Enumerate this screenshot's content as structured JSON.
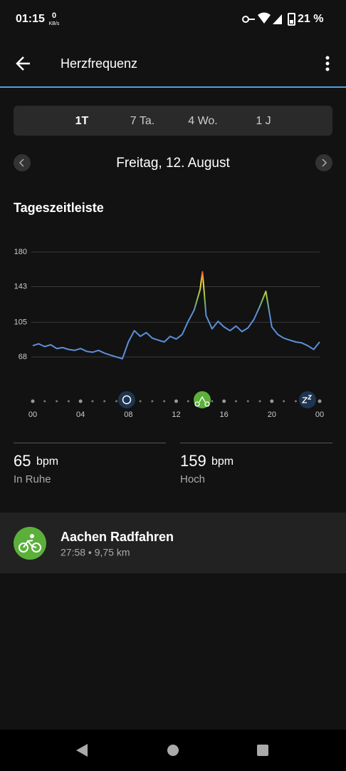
{
  "status_bar": {
    "time": "01:15",
    "speed_value": "0",
    "speed_unit": "KB/s",
    "battery": "21 %"
  },
  "header": {
    "title": "Herzfrequenz"
  },
  "tabs": [
    "1T",
    "7 Ta.",
    "4 Wo.",
    "1 J"
  ],
  "date": "Freitag, 12. August",
  "section_title": "Tageszeitleiste",
  "chart_data": {
    "type": "line",
    "x": [
      0,
      0.5,
      1,
      1.5,
      2,
      2.5,
      3,
      3.5,
      4,
      4.5,
      5,
      5.5,
      6,
      6.5,
      7,
      7.5,
      8,
      8.5,
      9,
      9.5,
      10,
      10.5,
      11,
      11.5,
      12,
      12.5,
      13,
      13.5,
      14,
      14.2,
      14.5,
      15,
      15.5,
      16,
      16.5,
      17,
      17.5,
      18,
      18.5,
      19,
      19.5,
      20,
      20.5,
      21,
      21.5,
      22,
      22.5,
      23,
      23.5,
      24
    ],
    "series": [
      {
        "name": "Herzfrequenz",
        "color": "#5b8fd9",
        "values": [
          80,
          82,
          79,
          81,
          77,
          78,
          76,
          75,
          77,
          74,
          73,
          75,
          72,
          70,
          68,
          66,
          84,
          96,
          90,
          94,
          88,
          86,
          84,
          90,
          87,
          92,
          106,
          118,
          140,
          159,
          112,
          98,
          106,
          100,
          96,
          101,
          95,
          99,
          108,
          122,
          138,
          100,
          92,
          88,
          86,
          84,
          83,
          80,
          76,
          84
        ]
      }
    ],
    "gradient_colors": [
      "#5b8fd9",
      "#8bc34a",
      "#fdd835",
      "#f44336"
    ],
    "xlim": [
      0,
      24
    ],
    "xticks": [
      {
        "value": 0,
        "label": "00"
      },
      {
        "value": 4,
        "label": "04"
      },
      {
        "value": 8,
        "label": "08"
      },
      12,
      16,
      20,
      {
        "value": 24,
        "label": "00"
      }
    ],
    "ylim": [
      50,
      180
    ],
    "yticks": [
      68,
      105,
      143,
      180
    ],
    "grid": true
  },
  "stats": [
    {
      "value": "65",
      "unit": "bpm",
      "label": "In Ruhe"
    },
    {
      "value": "159",
      "unit": "bpm",
      "label": "Hoch"
    }
  ],
  "activity": {
    "title": "Aachen Radfahren",
    "details": "27:58 • 9,75 km"
  }
}
